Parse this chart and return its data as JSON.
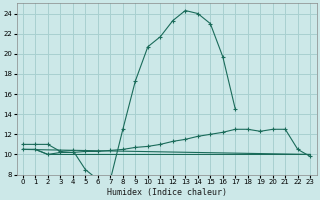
{
  "xlabel": "Humidex (Indice chaleur)",
  "bg_color": "#cce8e8",
  "grid_color": "#a8d0d0",
  "line_color": "#1a6b5a",
  "xlim": [
    -0.5,
    23.5
  ],
  "ylim": [
    8,
    25
  ],
  "xticks": [
    0,
    1,
    2,
    3,
    4,
    5,
    6,
    7,
    8,
    9,
    10,
    11,
    12,
    13,
    14,
    15,
    16,
    17,
    18,
    19,
    20,
    21,
    22,
    23
  ],
  "yticks": [
    8,
    10,
    12,
    14,
    16,
    18,
    20,
    22,
    24
  ],
  "series1_x": [
    0,
    1,
    2,
    3,
    4,
    5,
    6,
    7,
    8,
    9,
    10,
    11,
    12,
    13,
    14,
    15,
    16,
    17
  ],
  "series1_y": [
    11,
    11,
    11,
    10.3,
    10.4,
    8.5,
    7.5,
    7.5,
    12.5,
    17.3,
    20.7,
    21.7,
    23.3,
    24.3,
    24.0,
    23.0,
    19.7,
    14.5
  ],
  "series2_x": [
    0,
    1,
    2,
    3,
    4,
    5,
    6,
    7,
    8,
    9,
    10,
    11,
    12,
    13,
    14,
    15,
    16,
    17,
    18,
    19,
    20,
    21,
    22,
    23
  ],
  "series2_y": [
    10.5,
    10.5,
    10.0,
    10.2,
    10.2,
    10.3,
    10.3,
    10.4,
    10.5,
    10.7,
    10.8,
    11.0,
    11.3,
    11.5,
    11.8,
    12.0,
    12.2,
    12.5,
    12.5,
    12.3,
    12.5,
    12.5,
    10.5,
    9.8
  ],
  "series3_x": [
    0,
    23
  ],
  "series3_y": [
    10.5,
    10.0
  ],
  "series4_x": [
    0,
    1,
    2,
    3,
    4,
    5,
    6,
    7,
    8,
    9,
    10,
    11,
    12,
    13,
    14,
    15,
    16,
    17,
    18,
    19,
    20,
    21,
    22,
    23
  ],
  "series4_y": [
    10.5,
    10.5,
    10.0,
    10.0,
    10.0,
    10.0,
    10.0,
    10.0,
    10.0,
    10.0,
    10.0,
    10.0,
    10.0,
    10.0,
    10.0,
    10.0,
    10.0,
    10.0,
    10.0,
    10.0,
    10.0,
    10.0,
    10.0,
    10.0
  ]
}
